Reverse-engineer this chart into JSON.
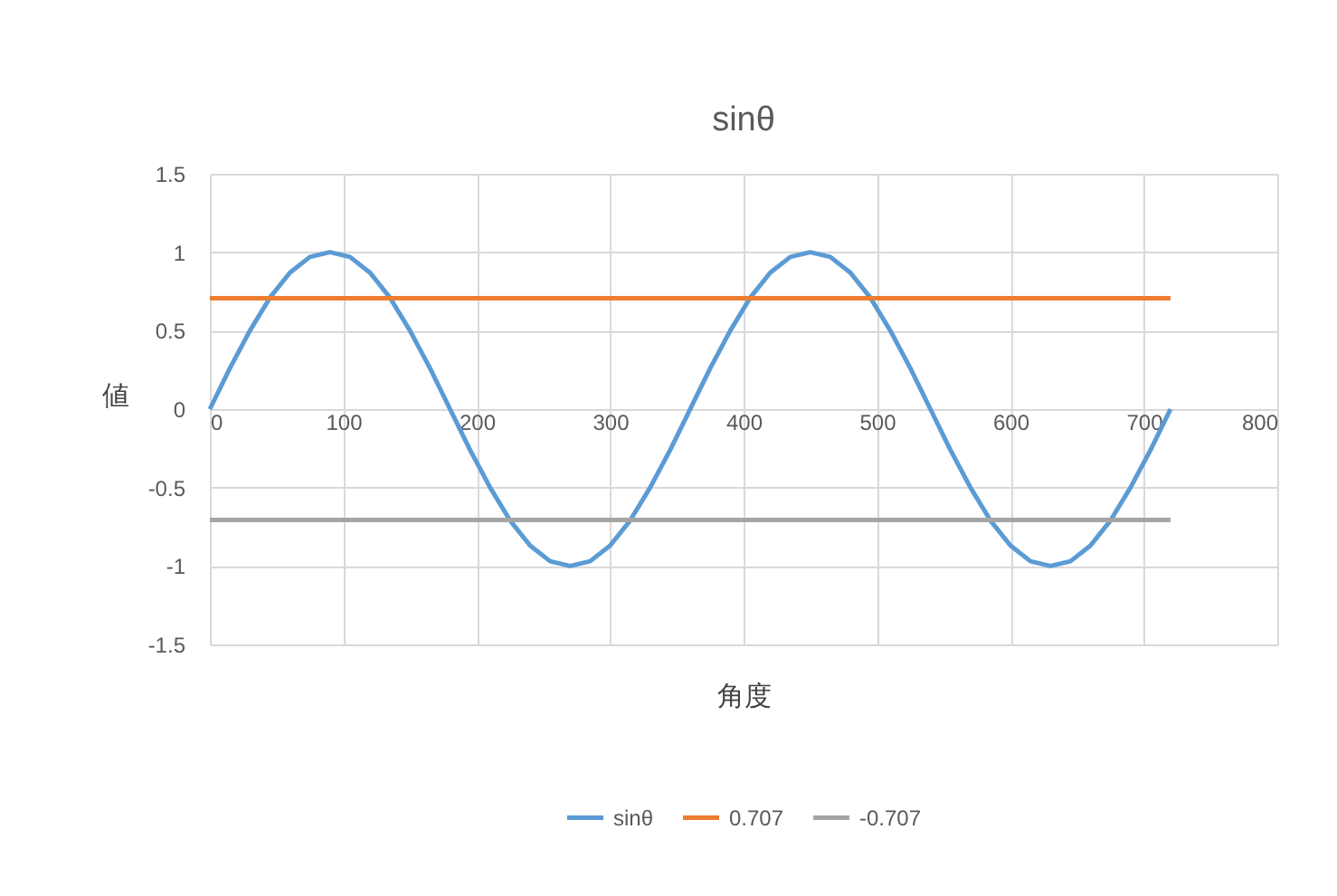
{
  "chart_data": {
    "type": "line",
    "title": "sinθ",
    "xlabel": "角度",
    "ylabel": "値",
    "x": [
      0,
      15,
      30,
      45,
      60,
      75,
      90,
      105,
      120,
      135,
      150,
      165,
      180,
      195,
      210,
      225,
      240,
      255,
      270,
      285,
      300,
      315,
      330,
      345,
      360,
      375,
      390,
      405,
      420,
      435,
      450,
      465,
      480,
      495,
      510,
      525,
      540,
      555,
      570,
      585,
      600,
      615,
      630,
      645,
      660,
      675,
      690,
      705,
      720
    ],
    "series": [
      {
        "name": "sinθ",
        "color": "#5b9bd5",
        "values": [
          0,
          0.26,
          0.5,
          0.71,
          0.87,
          0.97,
          1,
          0.97,
          0.87,
          0.71,
          0.5,
          0.26,
          0,
          -0.26,
          -0.5,
          -0.71,
          -0.87,
          -0.97,
          -1,
          -0.97,
          -0.87,
          -0.71,
          -0.5,
          -0.26,
          0,
          0.26,
          0.5,
          0.71,
          0.87,
          0.97,
          1,
          0.97,
          0.87,
          0.71,
          0.5,
          0.26,
          0,
          -0.26,
          -0.5,
          -0.71,
          -0.87,
          -0.97,
          -1,
          -0.97,
          -0.87,
          -0.71,
          -0.5,
          -0.26,
          0
        ]
      },
      {
        "name": "0.707",
        "color": "#ed7d31",
        "values": [
          0.707,
          0.707,
          0.707,
          0.707,
          0.707,
          0.707,
          0.707,
          0.707,
          0.707,
          0.707,
          0.707,
          0.707,
          0.707,
          0.707,
          0.707,
          0.707,
          0.707,
          0.707,
          0.707,
          0.707,
          0.707,
          0.707,
          0.707,
          0.707,
          0.707,
          0.707,
          0.707,
          0.707,
          0.707,
          0.707,
          0.707,
          0.707,
          0.707,
          0.707,
          0.707,
          0.707,
          0.707,
          0.707,
          0.707,
          0.707,
          0.707,
          0.707,
          0.707,
          0.707,
          0.707,
          0.707,
          0.707,
          0.707,
          0.707
        ]
      },
      {
        "name": "-0.707",
        "color": "#a5a5a5",
        "values": [
          -0.707,
          -0.707,
          -0.707,
          -0.707,
          -0.707,
          -0.707,
          -0.707,
          -0.707,
          -0.707,
          -0.707,
          -0.707,
          -0.707,
          -0.707,
          -0.707,
          -0.707,
          -0.707,
          -0.707,
          -0.707,
          -0.707,
          -0.707,
          -0.707,
          -0.707,
          -0.707,
          -0.707,
          -0.707,
          -0.707,
          -0.707,
          -0.707,
          -0.707,
          -0.707,
          -0.707,
          -0.707,
          -0.707,
          -0.707,
          -0.707,
          -0.707,
          -0.707,
          -0.707,
          -0.707,
          -0.707,
          -0.707,
          -0.707,
          -0.707,
          -0.707,
          -0.707,
          -0.707,
          -0.707,
          -0.707,
          -0.707
        ]
      }
    ],
    "xlim": [
      0,
      800
    ],
    "xticks": [
      0,
      100,
      200,
      300,
      400,
      500,
      600,
      700,
      800
    ],
    "ylim": [
      -1.5,
      1.5
    ],
    "yticks": [
      -1.5,
      -1,
      -0.5,
      0,
      0.5,
      1,
      1.5
    ],
    "grid": true,
    "legend": "bottom"
  }
}
